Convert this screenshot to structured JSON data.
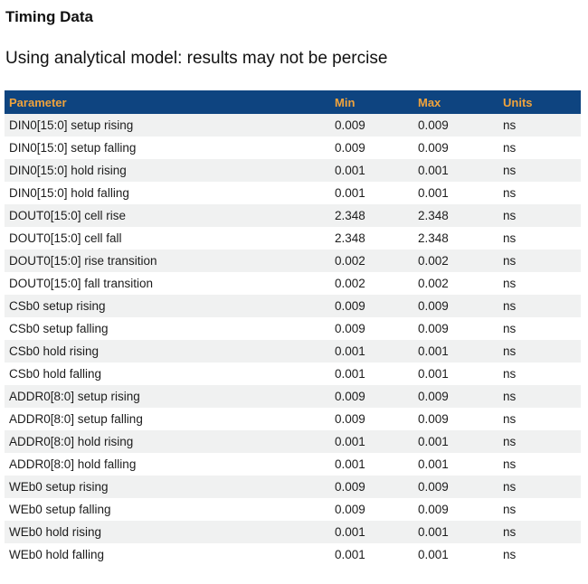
{
  "page": {
    "title": "Timing Data",
    "subtitle": "Using analytical model: results may not be percise"
  },
  "table": {
    "columns": {
      "parameter": "Parameter",
      "min": "Min",
      "max": "Max",
      "units": "Units"
    },
    "rows": [
      {
        "parameter": "DIN0[15:0] setup rising",
        "min": "0.009",
        "max": "0.009",
        "units": "ns"
      },
      {
        "parameter": "DIN0[15:0] setup falling",
        "min": "0.009",
        "max": "0.009",
        "units": "ns"
      },
      {
        "parameter": "DIN0[15:0] hold rising",
        "min": "0.001",
        "max": "0.001",
        "units": "ns"
      },
      {
        "parameter": "DIN0[15:0] hold falling",
        "min": "0.001",
        "max": "0.001",
        "units": "ns"
      },
      {
        "parameter": "DOUT0[15:0] cell rise",
        "min": "2.348",
        "max": "2.348",
        "units": "ns"
      },
      {
        "parameter": "DOUT0[15:0] cell fall",
        "min": "2.348",
        "max": "2.348",
        "units": "ns"
      },
      {
        "parameter": "DOUT0[15:0] rise transition",
        "min": "0.002",
        "max": "0.002",
        "units": "ns"
      },
      {
        "parameter": "DOUT0[15:0] fall transition",
        "min": "0.002",
        "max": "0.002",
        "units": "ns"
      },
      {
        "parameter": "CSb0 setup rising",
        "min": "0.009",
        "max": "0.009",
        "units": "ns"
      },
      {
        "parameter": "CSb0 setup falling",
        "min": "0.009",
        "max": "0.009",
        "units": "ns"
      },
      {
        "parameter": "CSb0 hold rising",
        "min": "0.001",
        "max": "0.001",
        "units": "ns"
      },
      {
        "parameter": "CSb0 hold falling",
        "min": "0.001",
        "max": "0.001",
        "units": "ns"
      },
      {
        "parameter": "ADDR0[8:0] setup rising",
        "min": "0.009",
        "max": "0.009",
        "units": "ns"
      },
      {
        "parameter": "ADDR0[8:0] setup falling",
        "min": "0.009",
        "max": "0.009",
        "units": "ns"
      },
      {
        "parameter": "ADDR0[8:0] hold rising",
        "min": "0.001",
        "max": "0.001",
        "units": "ns"
      },
      {
        "parameter": "ADDR0[8:0] hold falling",
        "min": "0.001",
        "max": "0.001",
        "units": "ns"
      },
      {
        "parameter": "WEb0 setup rising",
        "min": "0.009",
        "max": "0.009",
        "units": "ns"
      },
      {
        "parameter": "WEb0 setup falling",
        "min": "0.009",
        "max": "0.009",
        "units": "ns"
      },
      {
        "parameter": "WEb0 hold rising",
        "min": "0.001",
        "max": "0.001",
        "units": "ns"
      },
      {
        "parameter": "WEb0 hold falling",
        "min": "0.001",
        "max": "0.001",
        "units": "ns"
      }
    ]
  },
  "colors": {
    "header_bg": "#0e4480",
    "header_text": "#f0a33c",
    "row_alt_bg": "#f0f1f1",
    "row_bg": "#ffffff",
    "body_text": "#1c1c1c"
  }
}
